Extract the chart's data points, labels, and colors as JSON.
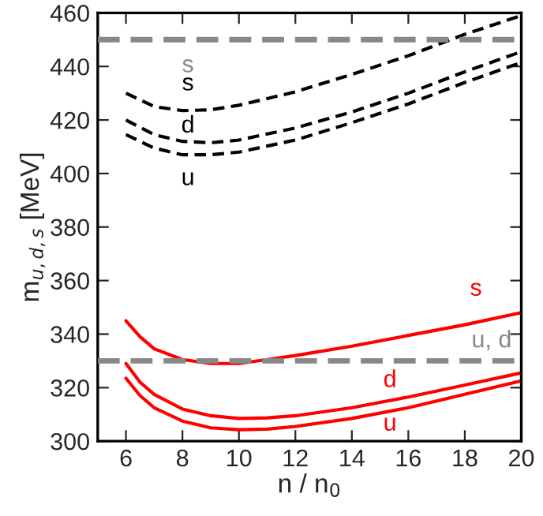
{
  "chart_data": {
    "type": "line",
    "xlabel": "n / n$_{0}$",
    "ylabel": "m$_{u,d,s}$ [MeV]",
    "xlim": [
      5,
      20
    ],
    "ylim": [
      300,
      460
    ],
    "xticks": [
      6,
      8,
      10,
      12,
      14,
      16,
      18,
      20
    ],
    "yticks": [
      300,
      320,
      340,
      360,
      380,
      400,
      420,
      440,
      460
    ],
    "grid": false,
    "legend": false,
    "series": [
      {
        "name": "s",
        "color": "#000000",
        "line_style": "dashed",
        "x": [
          6,
          7,
          8,
          9,
          10,
          12,
          14,
          16,
          18,
          20
        ],
        "values": [
          430,
          425,
          423.5,
          423.8,
          425.5,
          430.5,
          437,
          444,
          452,
          459
        ]
      },
      {
        "name": "d",
        "color": "#000000",
        "line_style": "dashed",
        "x": [
          6,
          7,
          8,
          9,
          10,
          12,
          14,
          16,
          18,
          20
        ],
        "values": [
          420,
          414.5,
          412,
          411.5,
          412.5,
          417,
          423,
          430,
          438,
          445.5
        ]
      },
      {
        "name": "u",
        "color": "#000000",
        "line_style": "dashed",
        "x": [
          6,
          7,
          8,
          9,
          10,
          12,
          14,
          16,
          18,
          20
        ],
        "values": [
          414.5,
          409.5,
          407,
          407,
          408,
          412.5,
          419,
          426,
          434,
          441.5
        ]
      },
      {
        "name": "s",
        "color": "#ff0000",
        "line_style": "solid",
        "x": [
          6,
          6.5,
          7,
          8,
          9,
          10,
          11,
          12,
          14,
          16,
          18,
          20
        ],
        "values": [
          345,
          339,
          334.5,
          330.5,
          329,
          329,
          330.5,
          332,
          335.5,
          339.5,
          343.5,
          348
        ]
      },
      {
        "name": "d",
        "color": "#ff0000",
        "line_style": "solid",
        "x": [
          6,
          6.5,
          7,
          8,
          9,
          10,
          11,
          12,
          14,
          16,
          18,
          20
        ],
        "values": [
          329,
          322,
          317.5,
          312,
          309.5,
          308.5,
          308.7,
          309.5,
          312.5,
          316.5,
          321,
          325.5
        ]
      },
      {
        "name": "u",
        "color": "#ff0000",
        "line_style": "solid",
        "x": [
          6,
          6.5,
          7,
          8,
          9,
          10,
          11,
          12,
          14,
          16,
          18,
          20
        ],
        "values": [
          323.5,
          317,
          312.5,
          307.5,
          305,
          304.3,
          304.5,
          305.5,
          308.5,
          312.5,
          317.5,
          322.5
        ]
      }
    ],
    "ref_lines": [
      {
        "axis": "y",
        "value": 450,
        "color": "#888888",
        "line_style": "dashed",
        "label": "s"
      },
      {
        "axis": "y",
        "value": 330,
        "color": "#888888",
        "line_style": "dashed",
        "label": "u, d"
      }
    ]
  }
}
